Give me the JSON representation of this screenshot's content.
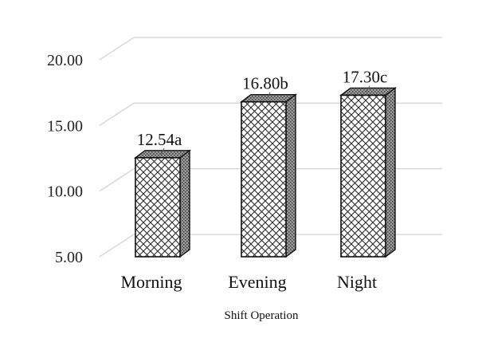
{
  "chart_data": {
    "type": "bar",
    "style": "3d-column",
    "categories": [
      "Morning",
      "Evening",
      "Night"
    ],
    "values": [
      12.54,
      16.8,
      17.3
    ],
    "data_labels": [
      "12.54a",
      "16.80b",
      "17.30c"
    ],
    "y_ticks": [
      "5.00",
      "10.00",
      "15.00",
      "20.00"
    ],
    "ylim": [
      5,
      20
    ],
    "xlabel": "Shift Operation",
    "ylabel": "",
    "title": "",
    "grid": true,
    "colors": {
      "front": "#ffffff",
      "pattern": "#222222",
      "side": "#8a8a8a",
      "grid": "#d6d6d6"
    }
  }
}
